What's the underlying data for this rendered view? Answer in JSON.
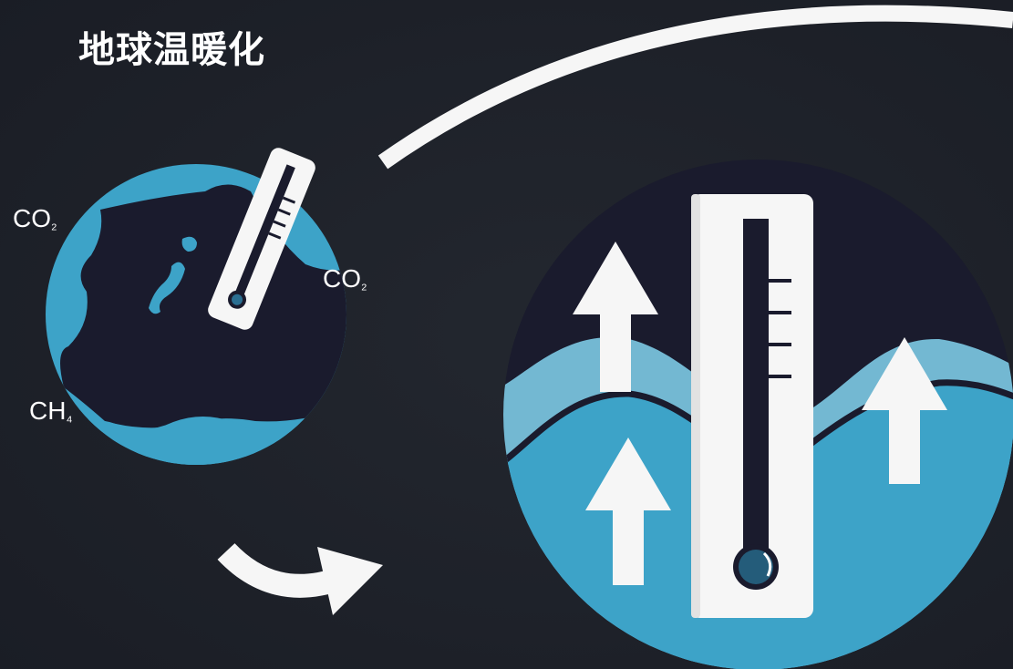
{
  "title": "地球温暖化",
  "gases": [
    {
      "formula": "CO",
      "subscript": "₂"
    },
    {
      "formula": "CO",
      "subscript": "₂"
    },
    {
      "formula": "CH",
      "subscript": "₄"
    }
  ],
  "colors": {
    "background": "#1e222b",
    "ocean": "#3da3c8",
    "ocean_light": "#73b8d2",
    "land": "#1a1b2d",
    "white": "#f6f6f6"
  }
}
